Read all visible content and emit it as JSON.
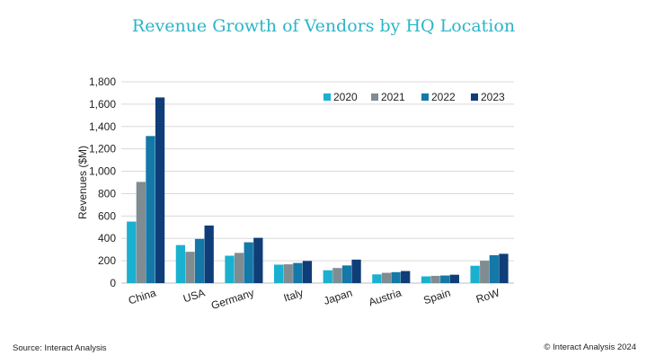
{
  "chart_data": {
    "type": "bar",
    "title": "Revenue Growth of Vendors by HQ Location",
    "ylabel": "Revenues ($M)",
    "xlabel": "",
    "ylim": [
      0,
      1800
    ],
    "yticks": [
      "0",
      "200",
      "400",
      "600",
      "800",
      "1,000",
      "1,200",
      "1,400",
      "1,600",
      "1,800"
    ],
    "grid": true,
    "legend_position": "top-right",
    "categories": [
      "China",
      "USA",
      "Germany",
      "Italy",
      "Japan",
      "Austria",
      "Spain",
      "RoW"
    ],
    "series": [
      {
        "name": "2020",
        "color": "#1ab0d0",
        "values": [
          550,
          340,
          245,
          165,
          115,
          78,
          60,
          155
        ]
      },
      {
        "name": "2021",
        "color": "#7f8c92",
        "values": [
          905,
          280,
          270,
          168,
          135,
          92,
          65,
          200
        ]
      },
      {
        "name": "2022",
        "color": "#1478a8",
        "values": [
          1315,
          395,
          365,
          180,
          158,
          98,
          68,
          250
        ]
      },
      {
        "name": "2023",
        "color": "#0f3d78",
        "values": [
          1660,
          515,
          405,
          198,
          210,
          108,
          75,
          262
        ]
      }
    ]
  },
  "footer": {
    "source": "Source: Interact Analysis",
    "copyright": "© Interact Analysis 2024"
  }
}
